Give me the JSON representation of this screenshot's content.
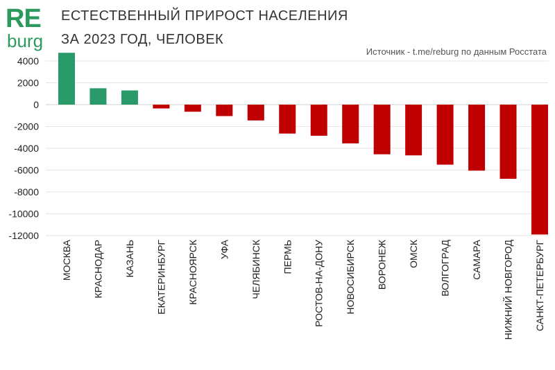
{
  "logo": {
    "line1": "RE",
    "line2": "burg"
  },
  "header": {
    "title_line1": "ЕСТЕСТВЕННЫЙ ПРИРОСТ НАСЕЛЕНИЯ",
    "title_line2": "ЗА 2023 ГОД, ЧЕЛОВЕК",
    "source": "Источник - t.me/reburg по данным Росстата"
  },
  "colors": {
    "positive": "#2a9a6a",
    "negative": "#c00000",
    "accent": "#2a9a5e",
    "grid": "#e6e6e6"
  },
  "chart_data": {
    "type": "bar",
    "title": "ЕСТЕСТВЕННЫЙ ПРИРОСТ НАСЕЛЕНИЯ ЗА 2023 ГОД, ЧЕЛОВЕК",
    "xlabel": "",
    "ylabel": "",
    "ylim": [
      -12000,
      4000
    ],
    "yticks": [
      4000,
      2000,
      0,
      -2000,
      -4000,
      -6000,
      -8000,
      -10000,
      -12000
    ],
    "grid": true,
    "categories": [
      "МОСКВА",
      "КРАСНОДАР",
      "КАЗАНЬ",
      "ЕКАТЕРИНБУРГ",
      "КРАСНОЯРСК",
      "УФА",
      "ЧЕЛЯБИНСК",
      "ПЕРМЬ",
      "РОСТОВ-НА-ДОНУ",
      "НОВОСИБИРСК",
      "ВОРОНЕЖ",
      "ОМСК",
      "ВОЛГОГРАД",
      "САМАРА",
      "НИЖНИЙ НОВГОРОД",
      "САНКТ-ПЕТЕРБУРГ"
    ],
    "values": [
      4750,
      1500,
      1300,
      -350,
      -650,
      -1050,
      -1450,
      -2650,
      -2850,
      -3550,
      -4550,
      -4650,
      -5500,
      -6050,
      -6800,
      -11900
    ]
  }
}
